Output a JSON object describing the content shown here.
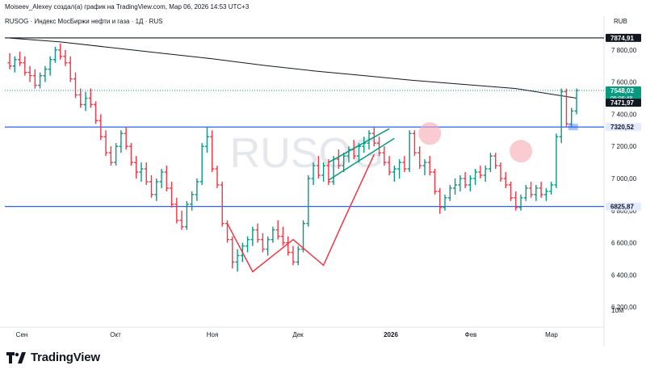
{
  "header": {
    "caption": "Moiseev_Alexey создал(а) график на TradingView.com, Мар 06, 2026 14:53 UTC+3",
    "symbol_line": "RUSOG · Индекс МосБиржи нефти и газа · 1Д · RUS",
    "currency": "RUB"
  },
  "watermark": "RUSOG",
  "footer": {
    "brand": "TradingView",
    "logo_icon": "tradingview-logo-icon"
  },
  "colors": {
    "up": "#089981",
    "down": "#f23645",
    "level_line": "#2962ff",
    "ma_line": "#131722",
    "pattern_red": "#f23645",
    "pattern_green": "#089981",
    "highlight_circle": "#f7a9b0",
    "axis_text": "#131722",
    "grid_dotted": "#089981",
    "current_price_bg": "#089981"
  },
  "chart_data": {
    "type": "ohlc",
    "x_ticks": [
      "Сен",
      "Окт",
      "Ноя",
      "Дек",
      "2026",
      "Фев",
      "Мар"
    ],
    "y_ticks": [
      "7 800,00",
      "7 600,00",
      "7 400,00",
      "7 200,00",
      "7 000,00",
      "6 800,00",
      "6 600,00",
      "6 400,00",
      "6 200,00"
    ],
    "y_tick_values": [
      7800,
      7600,
      7400,
      7200,
      7000,
      6800,
      6600,
      6400,
      6200
    ],
    "volume_label": "10M",
    "ylim": [
      6100,
      7950
    ],
    "price_labels": [
      {
        "text": "7874,91",
        "value": 7874.91,
        "style": "dark"
      },
      {
        "text": "7548,02",
        "sub": "05:06:48",
        "value": 7548.02,
        "style": "green"
      },
      {
        "text": "7471,97",
        "value": 7471.97,
        "style": "dark"
      },
      {
        "text": "7320,52",
        "value": 7320.52,
        "style": "blue"
      },
      {
        "text": "6825,87",
        "value": 6825.87,
        "style": "blue"
      }
    ],
    "horizontal_levels": [
      {
        "value": 7874.91,
        "color": "#131722"
      },
      {
        "value": 7320.52,
        "color": "#2962ff"
      },
      {
        "value": 6825.87,
        "color": "#2962ff"
      }
    ],
    "bars": [
      [
        7720,
        7780,
        7680,
        7700
      ],
      [
        7700,
        7760,
        7660,
        7740
      ],
      [
        7740,
        7790,
        7700,
        7720
      ],
      [
        7720,
        7760,
        7640,
        7660
      ],
      [
        7660,
        7700,
        7600,
        7640
      ],
      [
        7640,
        7680,
        7560,
        7580
      ],
      [
        7580,
        7660,
        7560,
        7640
      ],
      [
        7640,
        7700,
        7600,
        7680
      ],
      [
        7680,
        7760,
        7640,
        7740
      ],
      [
        7740,
        7820,
        7720,
        7800
      ],
      [
        7800,
        7840,
        7740,
        7760
      ],
      [
        7760,
        7800,
        7700,
        7720
      ],
      [
        7720,
        7760,
        7600,
        7620
      ],
      [
        7620,
        7660,
        7500,
        7520
      ],
      [
        7520,
        7560,
        7440,
        7460
      ],
      [
        7460,
        7540,
        7420,
        7500
      ],
      [
        7500,
        7560,
        7440,
        7460
      ],
      [
        7460,
        7480,
        7340,
        7360
      ],
      [
        7360,
        7400,
        7240,
        7260
      ],
      [
        7260,
        7300,
        7140,
        7160
      ],
      [
        7160,
        7200,
        7080,
        7100
      ],
      [
        7100,
        7220,
        7080,
        7200
      ],
      [
        7200,
        7300,
        7160,
        7280
      ],
      [
        7280,
        7320,
        7180,
        7200
      ],
      [
        7200,
        7220,
        7080,
        7100
      ],
      [
        7100,
        7140,
        7000,
        7040
      ],
      [
        7040,
        7100,
        6980,
        7060
      ],
      [
        7060,
        7100,
        6960,
        6980
      ],
      [
        6980,
        7020,
        6880,
        6900
      ],
      [
        6900,
        7000,
        6860,
        6980
      ],
      [
        6980,
        7060,
        6940,
        7040
      ],
      [
        7040,
        7080,
        6920,
        6940
      ],
      [
        6940,
        6980,
        6820,
        6840
      ],
      [
        6840,
        6880,
        6720,
        6740
      ],
      [
        6740,
        6800,
        6680,
        6700
      ],
      [
        6700,
        6860,
        6680,
        6840
      ],
      [
        6840,
        6920,
        6800,
        6900
      ],
      [
        6900,
        7000,
        6860,
        6980
      ],
      [
        6980,
        7220,
        6960,
        7200
      ],
      [
        7200,
        7320,
        7160,
        7260
      ],
      [
        7260,
        7300,
        7040,
        7060
      ],
      [
        7060,
        7080,
        6940,
        6960
      ],
      [
        6960,
        6980,
        6700,
        6720
      ],
      [
        6720,
        6740,
        6600,
        6620
      ],
      [
        6620,
        6640,
        6440,
        6480
      ],
      [
        6480,
        6560,
        6420,
        6520
      ],
      [
        6520,
        6600,
        6480,
        6580
      ],
      [
        6580,
        6640,
        6540,
        6620
      ],
      [
        6620,
        6700,
        6580,
        6680
      ],
      [
        6680,
        6720,
        6600,
        6620
      ],
      [
        6620,
        6660,
        6540,
        6560
      ],
      [
        6560,
        6640,
        6520,
        6620
      ],
      [
        6620,
        6700,
        6600,
        6680
      ],
      [
        6680,
        6740,
        6620,
        6640
      ],
      [
        6640,
        6700,
        6580,
        6600
      ],
      [
        6600,
        6640,
        6520,
        6540
      ],
      [
        6540,
        6580,
        6460,
        6480
      ],
      [
        6480,
        6580,
        6460,
        6560
      ],
      [
        6560,
        6740,
        6540,
        6720
      ],
      [
        6720,
        7020,
        6700,
        7000
      ],
      [
        7000,
        7100,
        6960,
        7080
      ],
      [
        7080,
        7140,
        7000,
        7020
      ],
      [
        7020,
        7100,
        6980,
        7080
      ],
      [
        7080,
        7120,
        6960,
        6980
      ],
      [
        6980,
        7140,
        6960,
        7120
      ],
      [
        7120,
        7180,
        7060,
        7080
      ],
      [
        7080,
        7160,
        7040,
        7140
      ],
      [
        7140,
        7200,
        7100,
        7180
      ],
      [
        7180,
        7240,
        7120,
        7140
      ],
      [
        7140,
        7220,
        7100,
        7200
      ],
      [
        7200,
        7260,
        7160,
        7220
      ],
      [
        7220,
        7300,
        7180,
        7280
      ],
      [
        7280,
        7320,
        7200,
        7220
      ],
      [
        7220,
        7260,
        7140,
        7160
      ],
      [
        7160,
        7200,
        7080,
        7100
      ],
      [
        7100,
        7140,
        7020,
        7040
      ],
      [
        7040,
        7080,
        6980,
        7060
      ],
      [
        7060,
        7120,
        7000,
        7100
      ],
      [
        7100,
        7140,
        7040,
        7060
      ],
      [
        7060,
        7300,
        7040,
        7280
      ],
      [
        7280,
        7300,
        7140,
        7160
      ],
      [
        7160,
        7200,
        7060,
        7080
      ],
      [
        7080,
        7120,
        7020,
        7100
      ],
      [
        7100,
        7140,
        7020,
        7040
      ],
      [
        7040,
        7060,
        6900,
        6920
      ],
      [
        6920,
        6940,
        6780,
        6820
      ],
      [
        6820,
        6900,
        6800,
        6880
      ],
      [
        6880,
        6960,
        6860,
        6940
      ],
      [
        6940,
        7000,
        6900,
        6960
      ],
      [
        6960,
        7020,
        6920,
        7000
      ],
      [
        7000,
        7040,
        6940,
        6960
      ],
      [
        6960,
        7020,
        6920,
        7000
      ],
      [
        7000,
        7060,
        6960,
        7040
      ],
      [
        7040,
        7080,
        7000,
        7020
      ],
      [
        7020,
        7080,
        6980,
        7060
      ],
      [
        7060,
        7160,
        7040,
        7140
      ],
      [
        7140,
        7160,
        7060,
        7080
      ],
      [
        7080,
        7100,
        6980,
        7000
      ],
      [
        7000,
        7040,
        6940,
        6960
      ],
      [
        6960,
        6980,
        6860,
        6880
      ],
      [
        6880,
        6920,
        6800,
        6820
      ],
      [
        6820,
        6900,
        6800,
        6880
      ],
      [
        6880,
        6960,
        6860,
        6940
      ],
      [
        6940,
        6980,
        6880,
        6900
      ],
      [
        6900,
        6960,
        6860,
        6940
      ],
      [
        6940,
        6980,
        6880,
        6900
      ],
      [
        6900,
        6940,
        6860,
        6920
      ],
      [
        6920,
        6980,
        6900,
        6960
      ],
      [
        6960,
        7280,
        6940,
        7260
      ],
      [
        7260,
        7560,
        7220,
        7540
      ],
      [
        7540,
        7560,
        7320,
        7340
      ],
      [
        7340,
        7440,
        7320,
        7420
      ],
      [
        7420,
        7560,
        7400,
        7548
      ]
    ],
    "moving_average": [
      [
        0,
        7874
      ],
      [
        10,
        7850
      ],
      [
        20,
        7815
      ],
      [
        30,
        7780
      ],
      [
        40,
        7745
      ],
      [
        50,
        7705
      ],
      [
        60,
        7670
      ],
      [
        70,
        7640
      ],
      [
        80,
        7610
      ],
      [
        90,
        7585
      ],
      [
        100,
        7560
      ],
      [
        112,
        7500
      ]
    ],
    "annotations": {
      "pattern_lines_red": [
        [
          [
            43,
            6720
          ],
          [
            48,
            6420
          ],
          [
            56,
            6620
          ],
          [
            62,
            6460
          ],
          [
            66,
            6740
          ],
          [
            72,
            7150
          ]
        ]
      ],
      "wedge_lines_green": [
        [
          [
            63,
            7100
          ],
          [
            75,
            7310
          ]
        ],
        [
          [
            63,
            6990
          ],
          [
            76,
            7250
          ]
        ]
      ],
      "circles": [
        [
          83,
          7280
        ],
        [
          101,
          7170
        ]
      ]
    }
  }
}
